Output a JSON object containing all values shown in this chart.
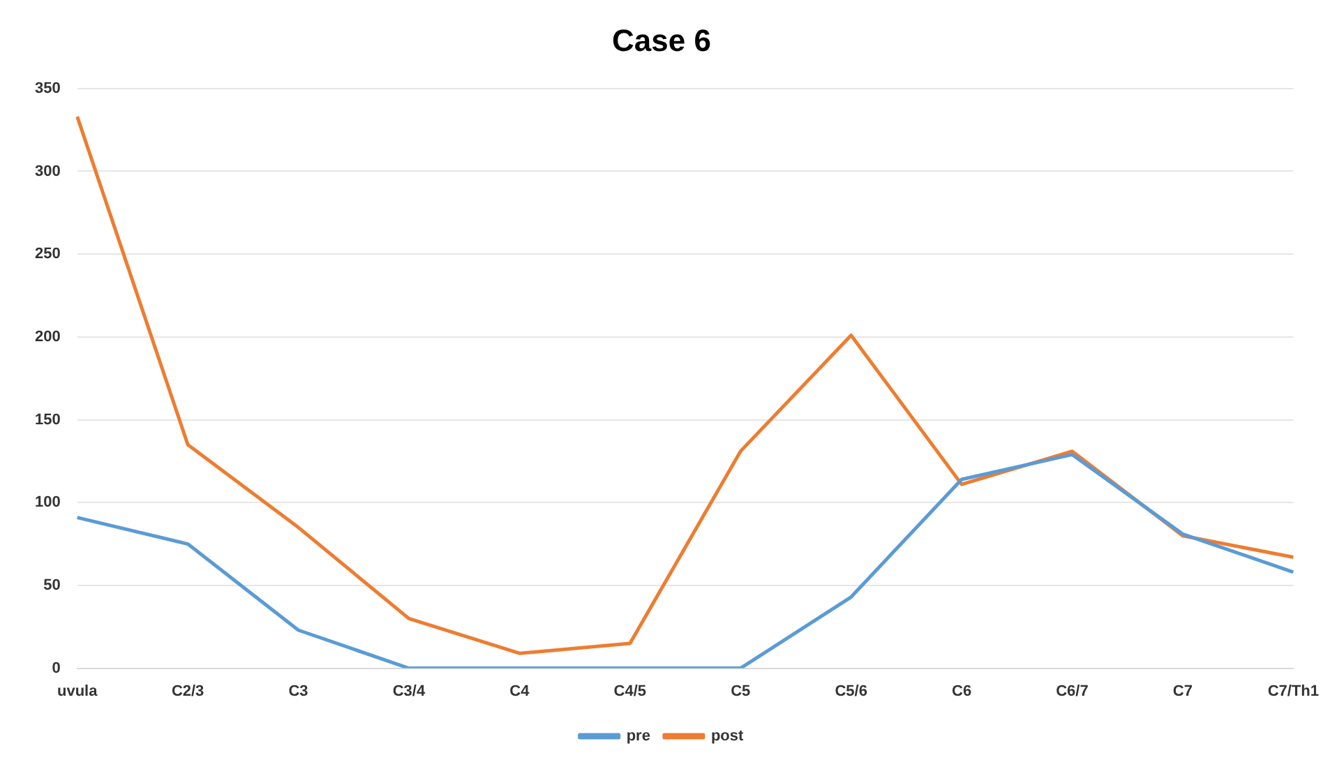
{
  "chart_data": {
    "type": "line",
    "title": "Case 6",
    "categories": [
      "uvula",
      "C2/3",
      "C3",
      "C3/4",
      "C4",
      "C4/5",
      "C5",
      "C5/6",
      "C6",
      "C6/7",
      "C7",
      "C7/Th1"
    ],
    "series": [
      {
        "name": "pre",
        "color": "#5b9bd5",
        "values": [
          91,
          75,
          23,
          0,
          0,
          0,
          0,
          43,
          114,
          129,
          81,
          58
        ]
      },
      {
        "name": "post",
        "color": "#ed7d31",
        "values": [
          333,
          135,
          85,
          30,
          9,
          15,
          131,
          201,
          111,
          131,
          80,
          67
        ]
      }
    ],
    "ylim": [
      0,
      350
    ],
    "yticks": [
      0,
      50,
      100,
      150,
      200,
      250,
      300,
      350
    ],
    "grid": "y",
    "legend": "bottom",
    "marker": "none",
    "line_style": "solid"
  }
}
